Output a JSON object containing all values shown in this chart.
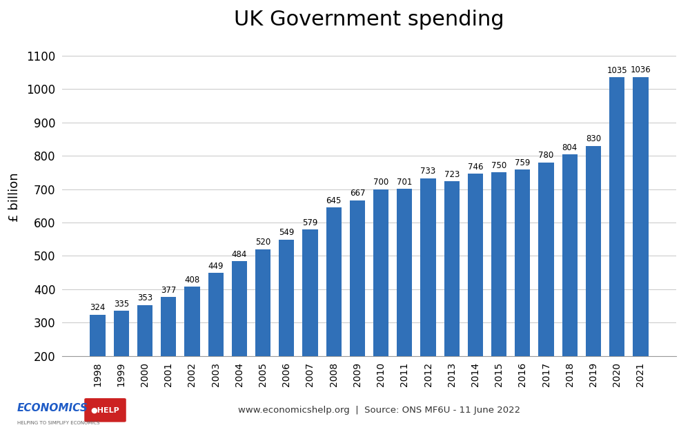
{
  "title": "UK Government spending",
  "ylabel": "£ billion",
  "years": [
    1998,
    1999,
    2000,
    2001,
    2002,
    2003,
    2004,
    2005,
    2006,
    2007,
    2008,
    2009,
    2010,
    2011,
    2012,
    2013,
    2014,
    2015,
    2016,
    2017,
    2018,
    2019,
    2020,
    2021
  ],
  "values": [
    324,
    335,
    353,
    377,
    408,
    449,
    484,
    520,
    549,
    579,
    645,
    667,
    700,
    701,
    733,
    723,
    746,
    750,
    759,
    780,
    804,
    830,
    1035,
    1036
  ],
  "bar_color": "#3070B8",
  "ylim_min": 200,
  "ylim_max": 1150,
  "yticks": [
    200,
    300,
    400,
    500,
    600,
    700,
    800,
    900,
    1000,
    1100
  ],
  "footer_text": "www.economicshelp.org  |  Source: ONS MF6U - 11 June 2022",
  "title_fontsize": 22,
  "bar_label_fontsize": 8.5,
  "ylabel_fontsize": 13,
  "background_color": "#FFFFFF",
  "grid_color": "#CCCCCC",
  "ytick_fontsize": 12,
  "xtick_fontsize": 10,
  "bar_width": 0.65
}
